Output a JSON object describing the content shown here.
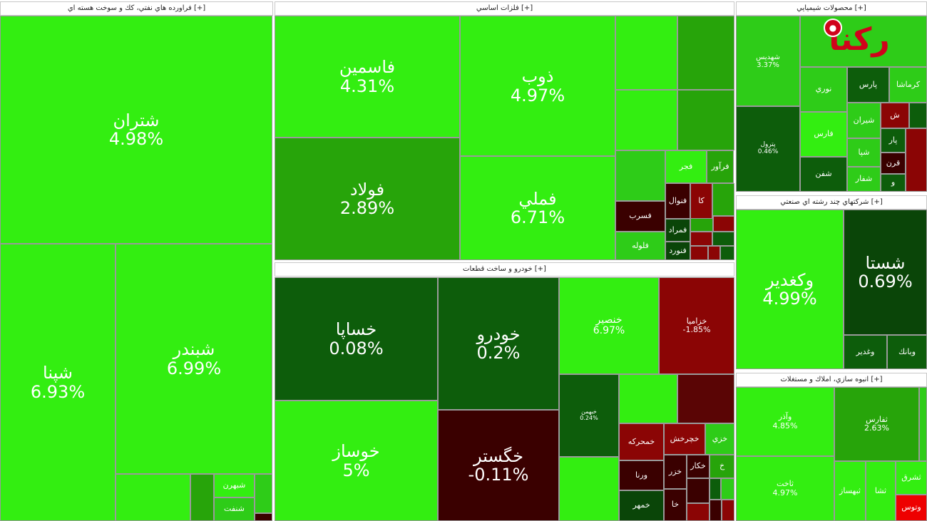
{
  "colors": {
    "bright_green": "#33ee11",
    "mid_green": "#27a40a",
    "light_mid_green": "#2ecc18",
    "dark_green": "#0d5d0b",
    "very_dark_green": "#0a4508",
    "bright_red": "#ee0000",
    "red": "#8b0505",
    "dark_red": "#5a0505",
    "very_dark_red": "#3a0000"
  },
  "sectors": [
    {
      "title": "فراورده هاي نفتي، كك و سوخت هسته اي [+]"
    },
    {
      "title": "فلزات اساسي [+]"
    },
    {
      "title": "محصولات شيميايي [+]"
    },
    {
      "title": "شركتهاي چند رشته اي صنعتي [+]"
    },
    {
      "title": "خودرو و ساخت قطعات [+]"
    },
    {
      "title": "انبوه سازي، املاك و مستغلات [+]"
    }
  ],
  "logo": {
    "text": "رکنا"
  },
  "chart_data": {
    "type": "treemap",
    "metric": "daily price change (%)",
    "groups": [
      {
        "sector": "فراورده هاي نفتي، كك و سوخت هسته اي",
        "items": [
          {
            "symbol": "شتران",
            "change": "4.98%"
          },
          {
            "symbol": "شپنا",
            "change": "6.93%"
          },
          {
            "symbol": "شبندر",
            "change": "6.99%"
          },
          {
            "symbol": "شبهرن",
            "change": ""
          },
          {
            "symbol": "شنفت",
            "change": ""
          }
        ]
      },
      {
        "sector": "فلزات اساسي",
        "items": [
          {
            "symbol": "فاسمين",
            "change": "4.31%"
          },
          {
            "symbol": "فولاد",
            "change": "2.89%"
          },
          {
            "symbol": "ذوب",
            "change": "4.97%"
          },
          {
            "symbol": "فملي",
            "change": "6.71%"
          },
          {
            "symbol": "فسرب",
            "change": ""
          },
          {
            "symbol": "فلوله",
            "change": ""
          },
          {
            "symbol": "فجر",
            "change": ""
          },
          {
            "symbol": "فرآور",
            "change": ""
          },
          {
            "symbol": "فنوال",
            "change": ""
          },
          {
            "symbol": "فمراد",
            "change": ""
          },
          {
            "symbol": "فنورد",
            "change": ""
          },
          {
            "symbol": "كا",
            "change": ""
          }
        ]
      },
      {
        "sector": "محصولات شيميايي",
        "items": [
          {
            "symbol": "شهديس",
            "change": "3.37%"
          },
          {
            "symbol": "پترول",
            "change": "0.46%"
          },
          {
            "symbol": "نوري",
            "change": ""
          },
          {
            "symbol": "پارس",
            "change": ""
          },
          {
            "symbol": "كرماشا",
            "change": ""
          },
          {
            "symbol": "شيران",
            "change": ""
          },
          {
            "symbol": "فارس",
            "change": ""
          },
          {
            "symbol": "شپا",
            "change": ""
          },
          {
            "symbol": "شفن",
            "change": ""
          },
          {
            "symbol": "شفار",
            "change": ""
          },
          {
            "symbol": "پار",
            "change": ""
          },
          {
            "symbol": "قرن",
            "change": ""
          },
          {
            "symbol": "ش",
            "change": ""
          },
          {
            "symbol": "و",
            "change": ""
          }
        ]
      },
      {
        "sector": "شركتهاي چند رشته اي صنعتي",
        "items": [
          {
            "symbol": "وكغدير",
            "change": "4.99%"
          },
          {
            "symbol": "شستا",
            "change": "0.69%"
          },
          {
            "symbol": "وغدير",
            "change": ""
          },
          {
            "symbol": "وبانك",
            "change": ""
          }
        ]
      },
      {
        "sector": "خودرو و ساخت قطعات",
        "items": [
          {
            "symbol": "خساپا",
            "change": "0.08%"
          },
          {
            "symbol": "خوساز",
            "change": "5%"
          },
          {
            "symbol": "خودرو",
            "change": "0.2%"
          },
          {
            "symbol": "خگستر",
            "change": "-0.11%"
          },
          {
            "symbol": "خنصير",
            "change": "6.97%"
          },
          {
            "symbol": "خزاميا",
            "change": "-1.85%"
          },
          {
            "symbol": "خبهمن",
            "change": "0.24%"
          },
          {
            "symbol": "خمحركه",
            "change": ""
          },
          {
            "symbol": "خچرخش",
            "change": ""
          },
          {
            "symbol": "ورنا",
            "change": ""
          },
          {
            "symbol": "خزر",
            "change": ""
          },
          {
            "symbol": "خكار",
            "change": ""
          },
          {
            "symbol": "خمهر",
            "change": ""
          },
          {
            "symbol": "خا",
            "change": ""
          },
          {
            "symbol": "خزي",
            "change": ""
          },
          {
            "symbol": "خ",
            "change": ""
          }
        ]
      },
      {
        "sector": "انبوه سازي، املاك و مستغلات",
        "items": [
          {
            "symbol": "وآذر",
            "change": "4.85%"
          },
          {
            "symbol": "ثفارس",
            "change": "2.63%"
          },
          {
            "symbol": "ثاخت",
            "change": "4.97%"
          },
          {
            "symbol": "ثبهساز",
            "change": ""
          },
          {
            "symbol": "ثشا",
            "change": ""
          },
          {
            "symbol": "ثشرق",
            "change": ""
          },
          {
            "symbol": "وتوس",
            "change": ""
          }
        ]
      }
    ]
  }
}
